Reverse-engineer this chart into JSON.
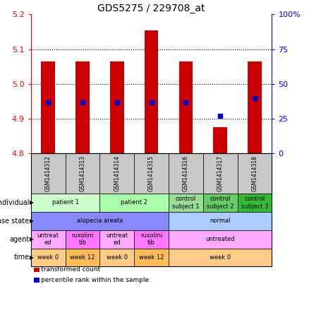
{
  "title": "GDS5275 / 229708_at",
  "samples": [
    "GSM1414312",
    "GSM1414313",
    "GSM1414314",
    "GSM1414315",
    "GSM1414316",
    "GSM1414317",
    "GSM1414318"
  ],
  "transformed_counts": [
    5.065,
    5.065,
    5.065,
    5.155,
    5.065,
    4.875,
    5.065
  ],
  "percentile_ranks": [
    37,
    37,
    37,
    37,
    37,
    27,
    40
  ],
  "ylim": [
    4.8,
    5.2
  ],
  "yticks_left": [
    4.8,
    4.9,
    5.0,
    5.1,
    5.2
  ],
  "yticks_right": [
    0,
    25,
    50,
    75,
    100
  ],
  "ytick_right_labels": [
    "0",
    "25",
    "50",
    "75",
    "100%"
  ],
  "bar_color": "#cc0000",
  "dot_color": "#0000cc",
  "sample_label_bg": "#c8c8c8",
  "rows": [
    {
      "label": "individual",
      "cells": [
        {
          "text": "patient 1",
          "span": 2,
          "bg": "#ccffcc"
        },
        {
          "text": "patient 2",
          "span": 2,
          "bg": "#aaffaa"
        },
        {
          "text": "control\nsubject 1",
          "span": 1,
          "bg": "#99dd99"
        },
        {
          "text": "control\nsubject 2",
          "span": 1,
          "bg": "#66cc66"
        },
        {
          "text": "control\nsubject 3",
          "span": 1,
          "bg": "#33bb33"
        }
      ]
    },
    {
      "label": "disease state",
      "cells": [
        {
          "text": "alopecia areata",
          "span": 4,
          "bg": "#8888ff"
        },
        {
          "text": "normal",
          "span": 3,
          "bg": "#aaccff"
        }
      ]
    },
    {
      "label": "agent",
      "cells": [
        {
          "text": "untreat\ned",
          "span": 1,
          "bg": "#ffaaff"
        },
        {
          "text": "ruxolini\ntib",
          "span": 1,
          "bg": "#ff77ff"
        },
        {
          "text": "untreat\ned",
          "span": 1,
          "bg": "#ffaaff"
        },
        {
          "text": "ruxolini\ntib",
          "span": 1,
          "bg": "#ff77ff"
        },
        {
          "text": "untreated",
          "span": 3,
          "bg": "#ffaaff"
        }
      ]
    },
    {
      "label": "time",
      "cells": [
        {
          "text": "week 0",
          "span": 1,
          "bg": "#ffcc88"
        },
        {
          "text": "week 12",
          "span": 1,
          "bg": "#ffbb55"
        },
        {
          "text": "week 0",
          "span": 1,
          "bg": "#ffcc88"
        },
        {
          "text": "week 12",
          "span": 1,
          "bg": "#ffbb55"
        },
        {
          "text": "week 0",
          "span": 3,
          "bg": "#ffcc88"
        }
      ]
    }
  ],
  "legend": [
    {
      "color": "#cc0000",
      "label": "transformed count"
    },
    {
      "color": "#0000cc",
      "label": "percentile rank within the sample"
    }
  ]
}
